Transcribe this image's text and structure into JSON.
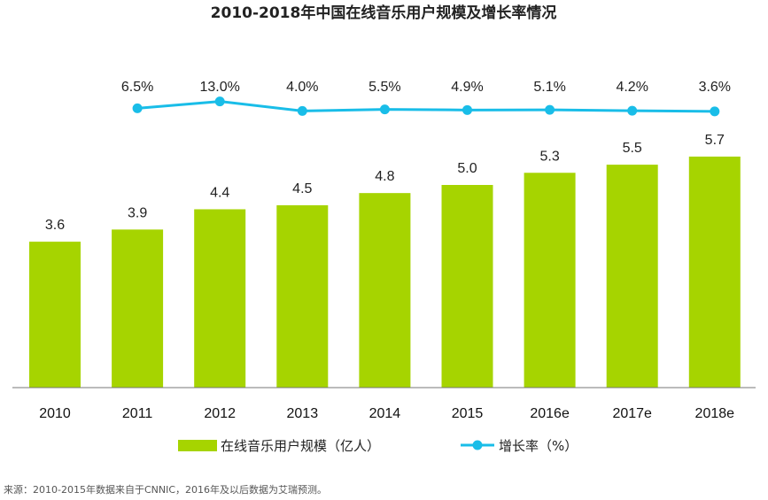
{
  "title": "2010-2018年中国在线音乐用户规模及增长率情况",
  "source": "来源：2010-2015年数据来自于CNNIC，2016年及以后数据为艾瑞预测。",
  "colors": {
    "bar": "#a6d400",
    "line": "#19bde8",
    "axis": "#777777"
  },
  "chart_data": {
    "type": "bar",
    "title": "2010-2018年中国在线音乐用户规模及增长率情况",
    "categories": [
      "2010",
      "2011",
      "2012",
      "2013",
      "2014",
      "2015",
      "2016e",
      "2017e",
      "2018e"
    ],
    "series": [
      {
        "name": "在线音乐用户规模（亿人）",
        "type": "bar",
        "values": [
          3.6,
          3.9,
          4.4,
          4.5,
          4.8,
          5.0,
          5.3,
          5.5,
          5.7
        ]
      },
      {
        "name": "增长率（%）",
        "type": "line",
        "values": [
          null,
          6.5,
          13.0,
          4.0,
          5.5,
          4.9,
          5.1,
          4.2,
          3.6
        ],
        "labels": [
          "",
          "6.5%",
          "13.0%",
          "4.0%",
          "5.5%",
          "4.9%",
          "5.1%",
          "4.2%",
          "3.6%"
        ]
      }
    ],
    "bar_labels": [
      "3.6",
      "3.9",
      "4.4",
      "4.5",
      "4.8",
      "5.0",
      "5.3",
      "5.5",
      "5.7"
    ],
    "legend": [
      "在线音乐用户规模（亿人）",
      "增长率（%）"
    ],
    "legend_position": "bottom",
    "grid": false
  }
}
